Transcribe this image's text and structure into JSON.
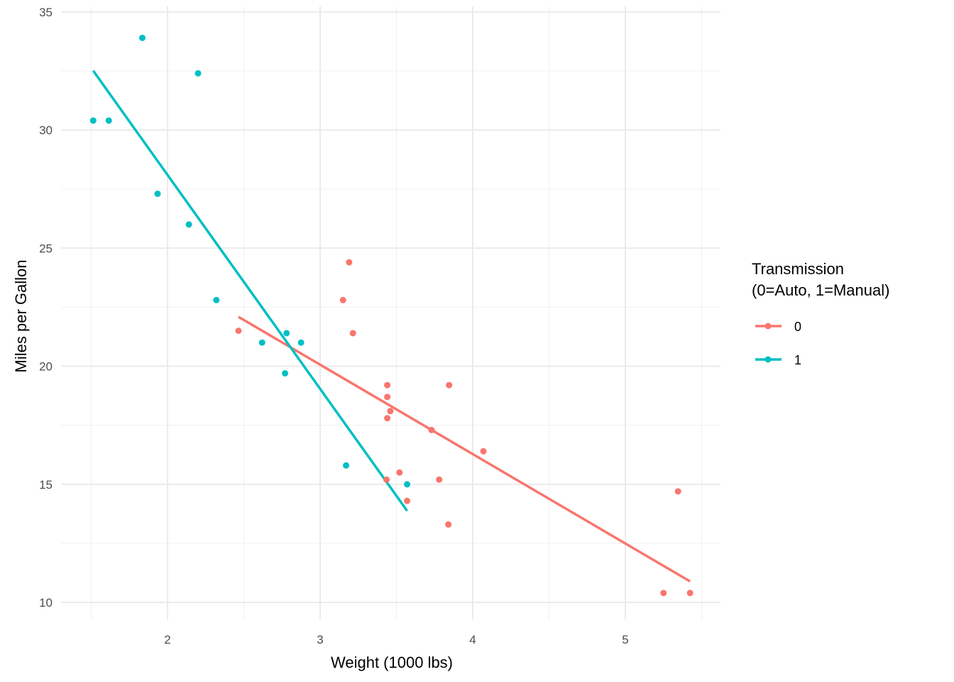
{
  "chart_data": {
    "type": "scatter",
    "title": "",
    "xlabel": "Weight (1000 lbs)",
    "ylabel": "Miles per Gallon",
    "xlim": [
      1.36,
      5.58
    ],
    "ylim": [
      9.2,
      35.1
    ],
    "x_ticks": [
      2,
      3,
      4,
      5
    ],
    "x_tick_labels": [
      "2",
      "3",
      "4",
      "5"
    ],
    "y_ticks": [
      10,
      15,
      20,
      25,
      30,
      35
    ],
    "y_tick_labels": [
      "10",
      "15",
      "20",
      "25",
      "30",
      "35"
    ],
    "grid": true,
    "legend": {
      "title_lines": [
        "Transmission",
        "(0=Auto, 1=Manual)"
      ],
      "placement": "right",
      "entries": [
        {
          "label": "0",
          "color": "#F8766D"
        },
        {
          "label": "1",
          "color": "#00BFC4"
        }
      ]
    },
    "series": [
      {
        "name": "0",
        "color": "#F8766D",
        "points": [
          [
            3.215,
            21.4
          ],
          [
            3.44,
            18.7
          ],
          [
            3.46,
            18.1
          ],
          [
            3.57,
            14.3
          ],
          [
            3.19,
            24.4
          ],
          [
            3.15,
            22.8
          ],
          [
            3.44,
            19.2
          ],
          [
            3.44,
            17.8
          ],
          [
            4.07,
            16.4
          ],
          [
            3.73,
            17.3
          ],
          [
            3.78,
            15.2
          ],
          [
            5.25,
            10.4
          ],
          [
            5.424,
            10.4
          ],
          [
            5.345,
            14.7
          ],
          [
            2.465,
            21.5
          ],
          [
            3.52,
            15.5
          ],
          [
            3.435,
            15.2
          ],
          [
            3.84,
            13.3
          ],
          [
            3.845,
            19.2
          ]
        ],
        "fit": {
          "x": [
            2.465,
            5.424
          ],
          "y": [
            22.09,
            10.89
          ]
        }
      },
      {
        "name": "1",
        "color": "#00BFC4",
        "points": [
          [
            2.62,
            21.0
          ],
          [
            2.875,
            21.0
          ],
          [
            2.32,
            22.8
          ],
          [
            2.2,
            32.4
          ],
          [
            1.615,
            30.4
          ],
          [
            1.835,
            33.9
          ],
          [
            1.935,
            27.3
          ],
          [
            2.14,
            26.0
          ],
          [
            1.513,
            30.4
          ],
          [
            3.17,
            15.8
          ],
          [
            2.77,
            19.7
          ],
          [
            2.78,
            21.4
          ],
          [
            3.57,
            15.0
          ]
        ],
        "fit": {
          "x": [
            1.513,
            3.57
          ],
          "y": [
            32.51,
            13.88
          ]
        }
      }
    ]
  }
}
